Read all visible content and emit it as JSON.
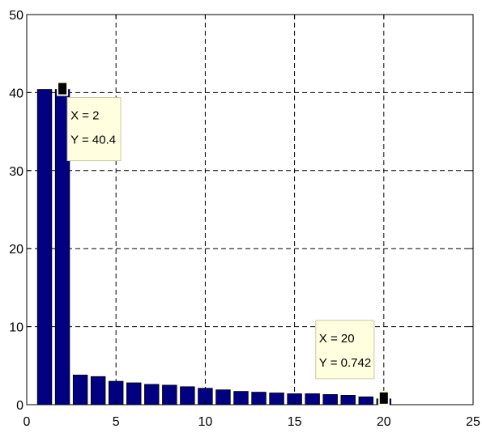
{
  "chart_data": {
    "type": "bar",
    "x": [
      1,
      2,
      3,
      4,
      5,
      6,
      7,
      8,
      9,
      10,
      11,
      12,
      13,
      14,
      15,
      16,
      17,
      18,
      19,
      20
    ],
    "values": [
      40.4,
      40.4,
      3.8,
      3.6,
      3.0,
      2.8,
      2.6,
      2.5,
      2.3,
      2.1,
      1.9,
      1.7,
      1.6,
      1.5,
      1.4,
      1.4,
      1.3,
      1.2,
      1.0,
      0.742
    ],
    "xlim": [
      0,
      25
    ],
    "ylim": [
      0,
      50
    ],
    "xticks": [
      "0",
      "5",
      "10",
      "15",
      "20",
      "25"
    ],
    "yticks": [
      "0",
      "10",
      "20",
      "30",
      "40",
      "50"
    ],
    "title": "",
    "xlabel": "",
    "ylabel": "",
    "grid": true,
    "bar_color": "#000080",
    "datatips": [
      {
        "x": 2,
        "y": 40.4,
        "line1": "X = 2",
        "line2": "Y = 40.4"
      },
      {
        "x": 20,
        "y": 0.742,
        "line1": "X = 20",
        "line2": "Y = 0.742"
      }
    ]
  }
}
